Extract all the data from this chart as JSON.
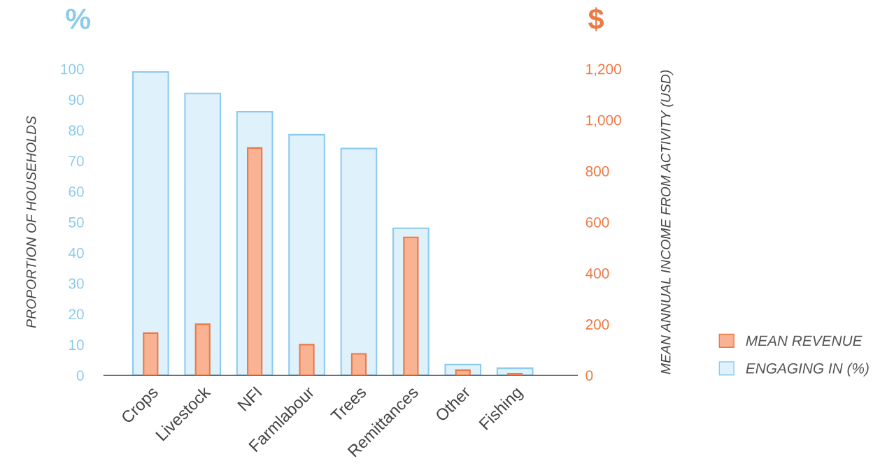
{
  "chart_data": {
    "type": "bar",
    "categories": [
      "Crops",
      "Livestock",
      "NFI",
      "Farmlabour",
      "Trees",
      "Remittances",
      "Other",
      "Fishing"
    ],
    "series": [
      {
        "name": "MEAN REVENUE",
        "color": "#f9b393",
        "axis": "y2",
        "values": [
          165,
          200,
          890,
          120,
          84,
          540,
          20,
          6
        ]
      },
      {
        "name": "ENGAGING IN (%)",
        "color": "#dff1fb",
        "axis": "y",
        "values": [
          99,
          92,
          86,
          78.5,
          74,
          48,
          3.5,
          2.3
        ]
      }
    ],
    "ylabel": "PROPORTION OF HOUSEHOLDS",
    "y2label": "MEAN ANNUAL INCOME FROM ACTIVITY (USD)",
    "annotations": [
      "%",
      "$"
    ],
    "ylim": [
      0,
      100
    ],
    "yticks": [
      0,
      10,
      20,
      30,
      40,
      50,
      60,
      70,
      80,
      90,
      100
    ],
    "y2lim": [
      0,
      1200
    ],
    "y2ticks": [
      {
        "value": 0,
        "label": "0"
      },
      {
        "value": 200,
        "label": "200"
      },
      {
        "value": 400,
        "label": "400"
      },
      {
        "value": 600,
        "label": "600"
      },
      {
        "value": 800,
        "label": "800"
      },
      {
        "value": 1000,
        "label": "1,000"
      },
      {
        "value": 1200,
        "label": "1,200"
      }
    ],
    "grid": false,
    "legend": "right"
  }
}
